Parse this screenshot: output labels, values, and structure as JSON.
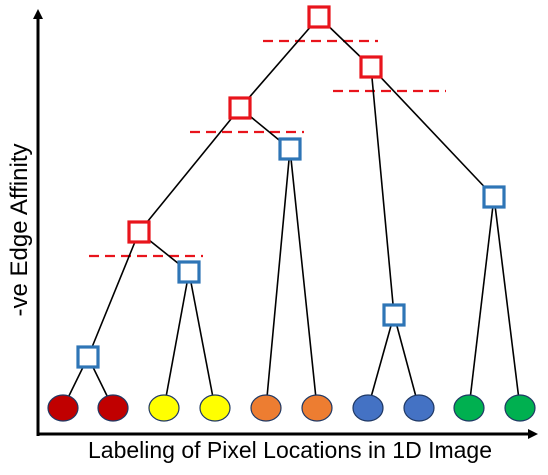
{
  "axes": {
    "y_label": "-ve Edge Affinity",
    "x_label": "Labeling of Pixel Locations in 1D Image"
  },
  "colors": {
    "merge_node": "#e8141c",
    "split_node": "#2e75b6",
    "threshold_line": "#e8141c",
    "edge": "#000000",
    "axis": "#000000"
  },
  "legend_semantics": {
    "red_square": "merge node (above threshold)",
    "blue_square": "node below threshold",
    "dashed_red": "threshold cut"
  },
  "leaves": [
    {
      "id": "L1",
      "color": "#c00000"
    },
    {
      "id": "L2",
      "color": "#c00000"
    },
    {
      "id": "L3",
      "color": "#ffff00"
    },
    {
      "id": "L4",
      "color": "#ffff00"
    },
    {
      "id": "L5",
      "color": "#ed7d31"
    },
    {
      "id": "L6",
      "color": "#ed7d31"
    },
    {
      "id": "L7",
      "color": "#4472c4"
    },
    {
      "id": "L8",
      "color": "#4472c4"
    },
    {
      "id": "L9",
      "color": "#00b050"
    },
    {
      "id": "L10",
      "color": "#00b050"
    }
  ],
  "nodes": [
    {
      "id": "root",
      "kind": "red",
      "threshold": true
    },
    {
      "id": "R2",
      "kind": "red",
      "threshold": true
    },
    {
      "id": "R3",
      "kind": "red",
      "threshold": true
    },
    {
      "id": "R4",
      "kind": "red",
      "threshold": true
    },
    {
      "id": "B1",
      "kind": "blue"
    },
    {
      "id": "B2",
      "kind": "blue"
    },
    {
      "id": "B3",
      "kind": "blue"
    },
    {
      "id": "B4",
      "kind": "blue"
    },
    {
      "id": "B5",
      "kind": "blue"
    }
  ],
  "edges": [
    [
      "root",
      "R3"
    ],
    [
      "root",
      "R2"
    ],
    [
      "R3",
      "R4"
    ],
    [
      "R3",
      "B3"
    ],
    [
      "R4",
      "B1"
    ],
    [
      "R4",
      "B2"
    ],
    [
      "B1",
      "L1"
    ],
    [
      "B1",
      "L2"
    ],
    [
      "B2",
      "L3"
    ],
    [
      "B2",
      "L4"
    ],
    [
      "B3",
      "L5"
    ],
    [
      "B3",
      "L6"
    ],
    [
      "R2",
      "B4"
    ],
    [
      "R2",
      "B5"
    ],
    [
      "B4",
      "L7"
    ],
    [
      "B4",
      "L8"
    ],
    [
      "B5",
      "L9"
    ],
    [
      "B5",
      "L10"
    ]
  ]
}
